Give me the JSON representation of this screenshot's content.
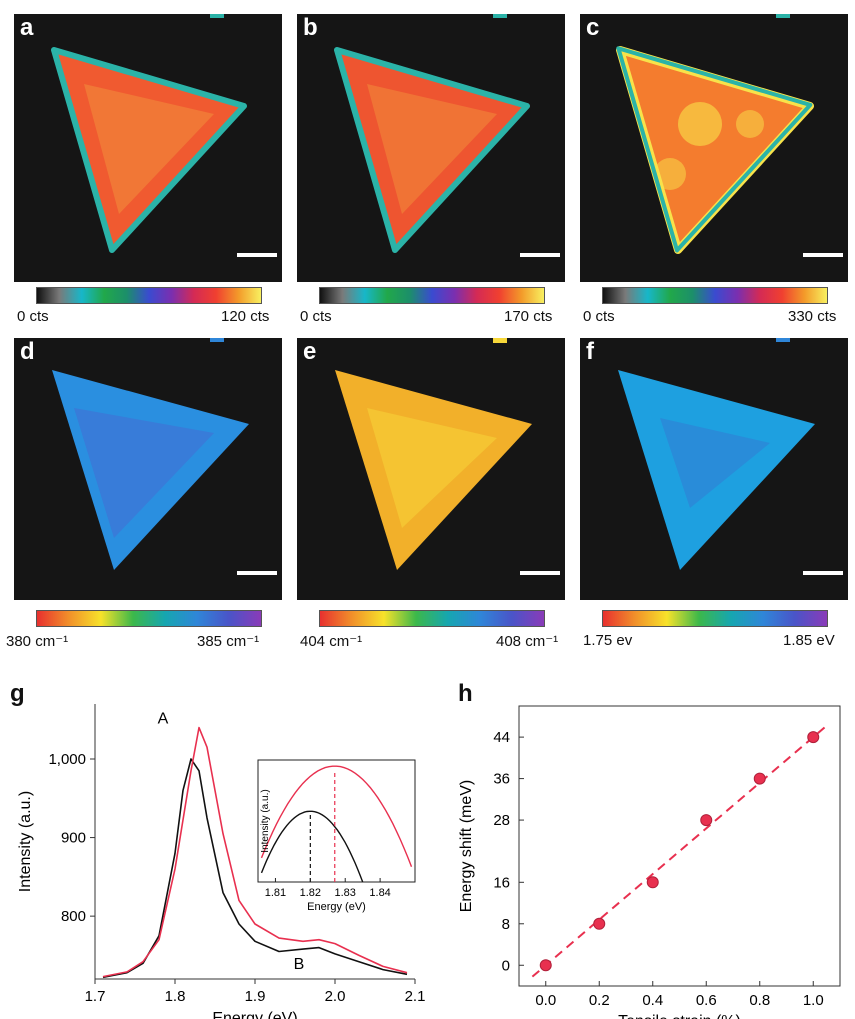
{
  "maps": [
    {
      "label": "a",
      "cbar": {
        "min": "0 cts",
        "max": "120 cts"
      }
    },
    {
      "label": "b",
      "cbar": {
        "min": "0 cts",
        "max": "170 cts"
      }
    },
    {
      "label": "c",
      "cbar": {
        "min": "0 cts",
        "max": "330 cts"
      }
    },
    {
      "label": "d",
      "cbar": {
        "min": "380 cm⁻¹",
        "max": "385 cm⁻¹"
      }
    },
    {
      "label": "e",
      "cbar": {
        "min": "404 cm⁻¹",
        "max": "408 cm⁻¹"
      }
    },
    {
      "label": "f",
      "cbar": {
        "min": "1.75 ev",
        "max": "1.85 eV"
      }
    }
  ],
  "colors": {
    "panel_bg": "#151515",
    "outline": "#2bb3a8",
    "red_series": "#e8304f",
    "black_series": "#111111",
    "cmap_intensity": [
      "#111111",
      "#7a7a7a",
      "#17b7c9",
      "#21a84a",
      "#1c8f6a",
      "#3a4bd0",
      "#7a2fb0",
      "#d42a55",
      "#f04030",
      "#f39b2a",
      "#f8f060"
    ],
    "cmap_rainbow": [
      "#e8302f",
      "#f1902a",
      "#f7e22a",
      "#3cb84a",
      "#16a6b0",
      "#2f86d8",
      "#4a54c8",
      "#8a3bb8"
    ]
  },
  "chart_data": [
    {
      "panel": "g",
      "type": "line",
      "xlabel": "Energy (eV)",
      "ylabel": "Intensity (a.u.)",
      "xlim": [
        1.7,
        2.1
      ],
      "ylim": [
        720,
        1070
      ],
      "xticks": [
        "1.7",
        "1.8",
        "1.9",
        "2.0",
        "2.1"
      ],
      "yticks": [
        "800",
        "900",
        "1,000"
      ],
      "annotations": [
        "A",
        "B"
      ],
      "series": [
        {
          "color": "#111111",
          "x": [
            1.71,
            1.74,
            1.76,
            1.78,
            1.8,
            1.81,
            1.82,
            1.83,
            1.84,
            1.86,
            1.88,
            1.9,
            1.93,
            1.96,
            1.98,
            2.0,
            2.03,
            2.06,
            2.09
          ],
          "y": [
            722,
            728,
            740,
            775,
            880,
            960,
            1000,
            985,
            925,
            830,
            790,
            768,
            755,
            758,
            760,
            752,
            742,
            732,
            726
          ]
        },
        {
          "color": "#e8304f",
          "x": [
            1.71,
            1.74,
            1.76,
            1.78,
            1.8,
            1.82,
            1.83,
            1.84,
            1.86,
            1.88,
            1.9,
            1.93,
            1.96,
            1.98,
            2.0,
            2.03,
            2.06,
            2.09
          ],
          "y": [
            723,
            729,
            742,
            770,
            860,
            985,
            1040,
            1015,
            905,
            820,
            790,
            772,
            768,
            770,
            765,
            750,
            736,
            728
          ]
        }
      ],
      "inset": {
        "xlabel": "Energy (eV)",
        "ylabel": "Intensity (a.u.)",
        "xticks": [
          "1.81",
          "1.82",
          "1.83",
          "1.84"
        ],
        "peaks": [
          1.82,
          1.827
        ]
      }
    },
    {
      "panel": "h",
      "type": "scatter",
      "xlabel": "Tensile strain (%)",
      "ylabel": "Energy shift (meV)",
      "xlim": [
        -0.1,
        1.1
      ],
      "ylim": [
        -4,
        50
      ],
      "xticks": [
        "0.0",
        "0.2",
        "0.4",
        "0.6",
        "0.8",
        "1.0"
      ],
      "yticks": [
        "0",
        "8",
        "16",
        "28",
        "36",
        "44"
      ],
      "points": {
        "x": [
          0.0,
          0.2,
          0.4,
          0.6,
          0.8,
          1.0
        ],
        "y": [
          0,
          8,
          16,
          28,
          36,
          44
        ]
      },
      "fit": {
        "x": [
          -0.05,
          1.05
        ],
        "y": [
          -2.2,
          46.2
        ]
      }
    }
  ]
}
